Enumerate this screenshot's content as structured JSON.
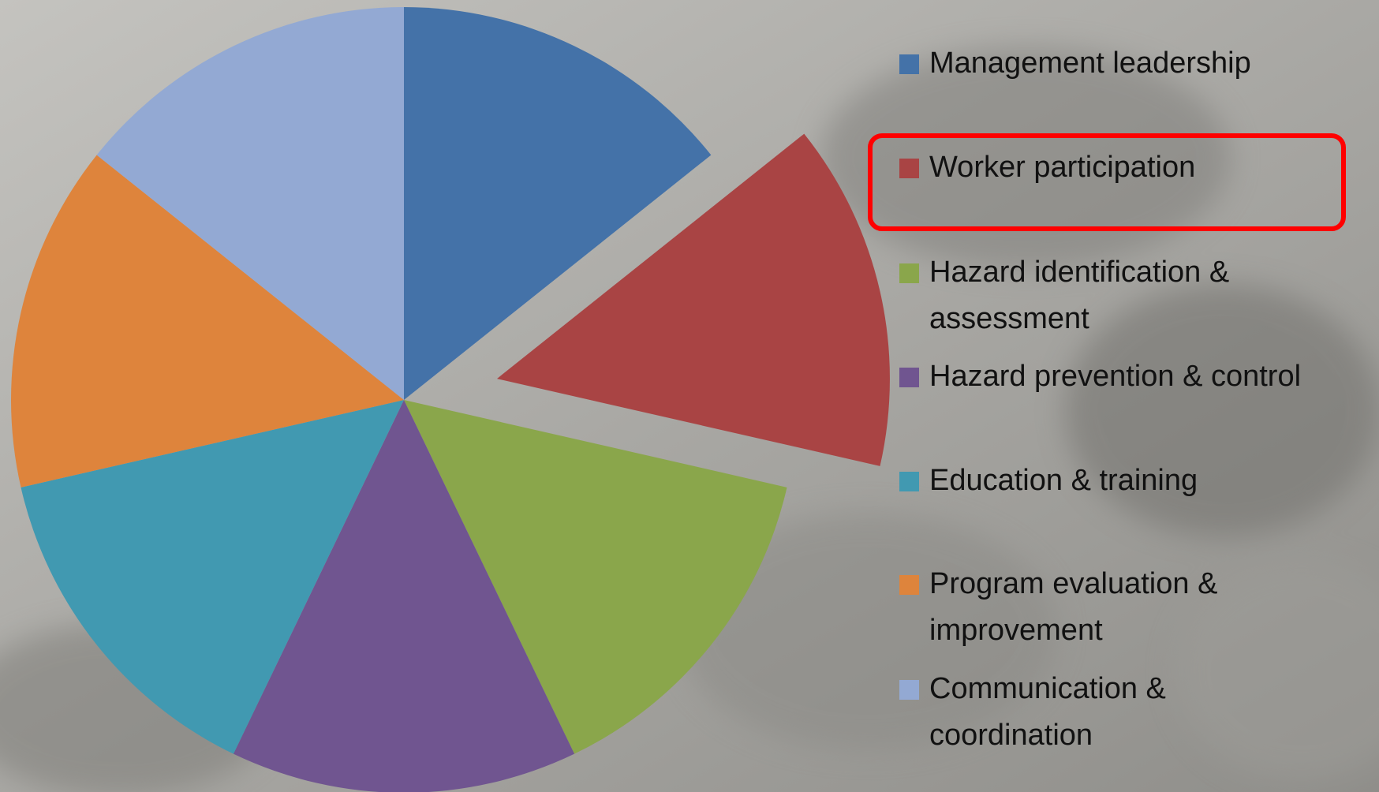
{
  "chart_data": {
    "type": "pie",
    "categories": [
      "Management leadership",
      "Worker participation",
      "Hazard identification &\nassessment",
      "Hazard prevention & control",
      "Education & training",
      "Program evaluation &\nimprovement",
      "Communication &\ncoordination"
    ],
    "values": [
      1,
      1,
      1,
      1,
      1,
      1,
      1
    ],
    "colors": [
      "#4472a8",
      "#a94444",
      "#8aa64b",
      "#705590",
      "#4199b1",
      "#de843c",
      "#93a9d3"
    ],
    "exploded": [
      false,
      true,
      false,
      false,
      false,
      false,
      false
    ],
    "legend": "right"
  }
}
